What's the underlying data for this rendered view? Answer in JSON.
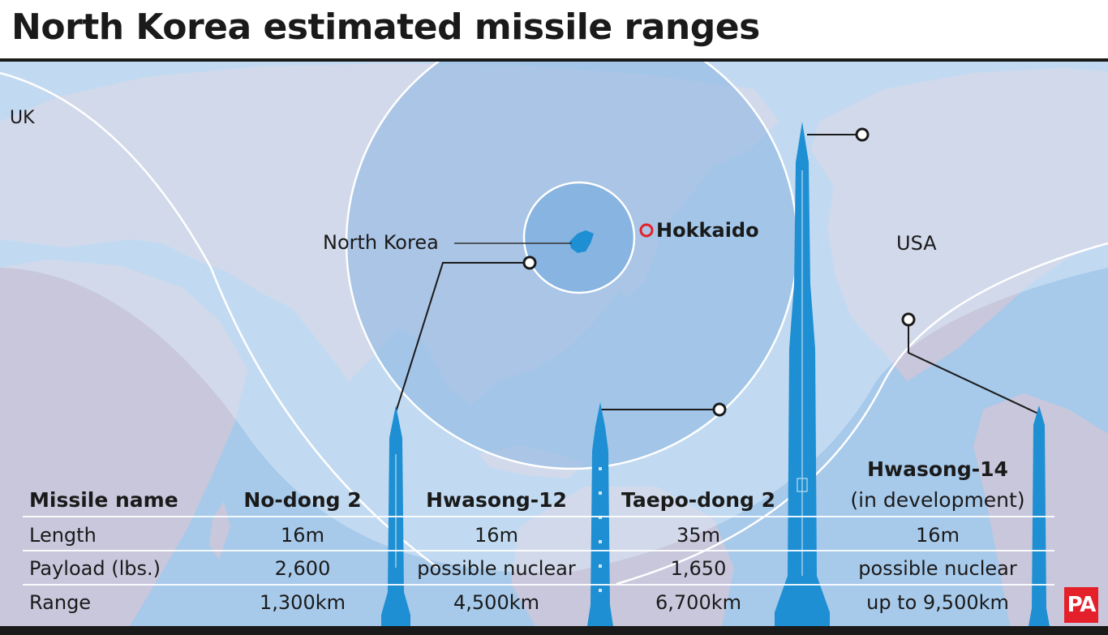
{
  "title": "North Korea estimated missile ranges",
  "map_labels": {
    "uk": "UK",
    "north_korea": "North Korea",
    "hokkaido": "Hokkaido",
    "usa": "USA"
  },
  "colors": {
    "ocean": "#a7c9ea",
    "land": "#c9c7dc",
    "range_outer": "#d9e8f6",
    "range_mid": "#89b4e0",
    "range_inner": "#6aa5dc",
    "missile": "#1f8fd3",
    "north_korea": "#1f8fd3",
    "hokkaido_marker": "#e4202b",
    "pa_logo": "#e4202b"
  },
  "icons": {
    "missile": "missile-icon",
    "target": "target-ring-icon",
    "hokkaido": "hokkaido-marker-icon",
    "logo": "pa-logo"
  },
  "table": {
    "headers": {
      "name": "Missile name",
      "nodong": "No-dong 2",
      "hwasong12": "Hwasong-12",
      "taepodong": "Taepo-dong 2",
      "hwasong14_line1": "Hwasong-14",
      "hwasong14_line2": "(in development)"
    },
    "rows": [
      {
        "label": "Length",
        "nodong": "16m",
        "hwasong12": "16m",
        "taepodong": "35m",
        "hwasong14": "16m"
      },
      {
        "label": "Payload (lbs.)",
        "nodong": "2,600",
        "hwasong12": "possible nuclear",
        "taepodong": "1,650",
        "hwasong14": "possible nuclear"
      },
      {
        "label": "Range",
        "nodong": "1,300km",
        "hwasong12": "4,500km",
        "taepodong": "6,700km",
        "hwasong14": "up to 9,500km"
      }
    ]
  },
  "logo_text": "PA"
}
